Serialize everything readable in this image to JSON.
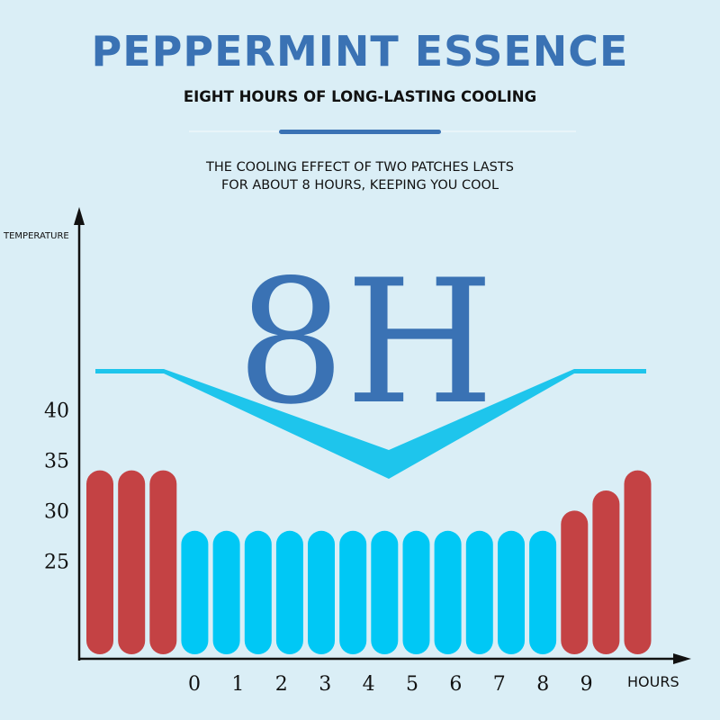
{
  "header": {
    "title": "PEPPERMINT ESSENCE",
    "subtitle": "EIGHT HOURS OF LONG-LASTING COOLING",
    "description_line1": "THE COOLING EFFECT OF TWO PATCHES LASTS",
    "description_line2": "FOR ABOUT 8 HOURS, KEEPING YOU COOL"
  },
  "highlight": {
    "text": "8H"
  },
  "colors": {
    "title": "#3a72b4",
    "warm_bar": "#c44244",
    "cool_bar": "#00c8f5",
    "cooling_curve": "#1ec5ec",
    "background": "#daeef6"
  },
  "chart_data": {
    "type": "bar",
    "ylabel": "TEMPERATURE",
    "xlabel": "HOURS",
    "y_ticks": [
      "25",
      "30",
      "35",
      "40"
    ],
    "x_ticks": [
      "0",
      "1",
      "2",
      "3",
      "4",
      "5",
      "6",
      "7",
      "8",
      "9"
    ],
    "ylim": [
      16,
      46
    ],
    "grid": false,
    "bars": [
      {
        "value": 34,
        "kind": "warm"
      },
      {
        "value": 34,
        "kind": "warm"
      },
      {
        "value": 34,
        "kind": "warm"
      },
      {
        "value": 28,
        "kind": "cool"
      },
      {
        "value": 28,
        "kind": "cool"
      },
      {
        "value": 28,
        "kind": "cool"
      },
      {
        "value": 28,
        "kind": "cool"
      },
      {
        "value": 28,
        "kind": "cool"
      },
      {
        "value": 28,
        "kind": "cool"
      },
      {
        "value": 28,
        "kind": "cool"
      },
      {
        "value": 28,
        "kind": "cool"
      },
      {
        "value": 28,
        "kind": "cool"
      },
      {
        "value": 28,
        "kind": "cool"
      },
      {
        "value": 28,
        "kind": "cool"
      },
      {
        "value": 28,
        "kind": "cool"
      },
      {
        "value": 30,
        "kind": "warm"
      },
      {
        "value": 32,
        "kind": "warm"
      },
      {
        "value": 34,
        "kind": "warm"
      }
    ]
  }
}
